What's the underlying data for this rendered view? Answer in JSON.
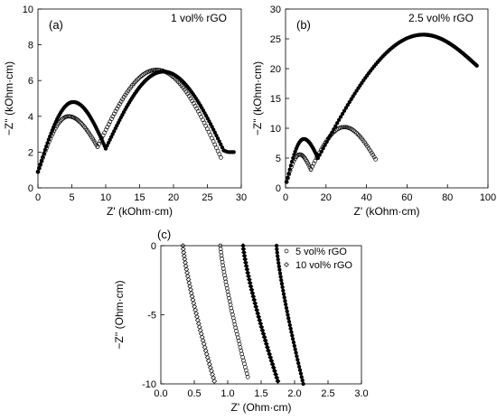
{
  "chart_data": [
    {
      "panel": "(a)",
      "type": "scatter",
      "annotation": "1 vol% rGO",
      "xlabel": "Z' (kOhm·cm)",
      "ylabel": "−Z'' (kOhm·cm)",
      "xlim": [
        0,
        30
      ],
      "ylim": [
        0,
        10
      ],
      "xticks": [
        0,
        5,
        10,
        15,
        20,
        25,
        30
      ],
      "yticks": [
        0,
        2,
        4,
        6,
        8,
        10
      ],
      "series": [
        {
          "marker": "filled-circle",
          "arcs": [
            {
              "start": [
                0.0,
                0.9
              ],
              "peak": [
                5.2,
                4.8
              ],
              "end": [
                10.0,
                2.2
              ]
            },
            {
              "start": [
                10.0,
                2.2
              ],
              "peak": [
                18.5,
                6.5
              ],
              "end": [
                27.4,
                2.1
              ]
            },
            {
              "start": [
                27.4,
                2.1
              ],
              "peak": [
                28.2,
                2.0
              ],
              "end": [
                28.9,
                2.0
              ]
            }
          ]
        },
        {
          "marker": "open-circle",
          "arcs": [
            {
              "start": [
                0.0,
                0.9
              ],
              "peak": [
                4.5,
                4.0
              ],
              "end": [
                8.8,
                2.3
              ]
            },
            {
              "start": [
                8.8,
                2.3
              ],
              "peak": [
                17.5,
                6.6
              ],
              "end": [
                27.0,
                1.7
              ]
            }
          ]
        }
      ]
    },
    {
      "panel": "(b)",
      "type": "scatter",
      "annotation": "2.5 vol% rGO",
      "xlabel": "Z' (kOhm·cm)",
      "ylabel": "−Z'' (kOhm·cm)",
      "xlim": [
        0,
        100
      ],
      "ylim": [
        0,
        30
      ],
      "xticks": [
        0,
        20,
        40,
        60,
        80,
        100
      ],
      "yticks": [
        0,
        5,
        10,
        15,
        20,
        25,
        30
      ],
      "series": [
        {
          "marker": "filled-circle",
          "arcs": [
            {
              "start": [
                0.5,
                1.0
              ],
              "peak": [
                9.0,
                8.2
              ],
              "end": [
                16.0,
                5.0
              ]
            },
            {
              "start": [
                16.0,
                5.0
              ],
              "peak": [
                68.0,
                25.7
              ],
              "end": [
                94.5,
                20.5
              ]
            }
          ]
        },
        {
          "marker": "open-circle",
          "arcs": [
            {
              "start": [
                0.5,
                1.0
              ],
              "peak": [
                7.0,
                5.6
              ],
              "end": [
                12.5,
                3.1
              ]
            },
            {
              "start": [
                12.5,
                3.1
              ],
              "peak": [
                29.0,
                10.2
              ],
              "end": [
                44.5,
                4.8
              ]
            }
          ]
        }
      ]
    },
    {
      "panel": "(c)",
      "type": "scatter",
      "xlabel": "Z' (Ohm·cm)",
      "ylabel": "−Z'' (Ohm·cm)",
      "xlim": [
        0.0,
        3.0
      ],
      "ylim": [
        -10,
        0
      ],
      "xticks": [
        "0.0",
        "0.5",
        "1.0",
        "1.5",
        "2.0",
        "2.5",
        "3.0"
      ],
      "yticks": [
        "0",
        "-5",
        "-10"
      ],
      "legend": {
        "position": "top-right",
        "entries": [
          {
            "label": "5 vol% rGO",
            "marker": "open-circle"
          },
          {
            "label": "10 vol% rGO",
            "marker": "open-diamond"
          }
        ]
      },
      "series": [
        {
          "label": "10 vol% rGO",
          "marker": "open-diamond",
          "x0": 0.33,
          "x1": 0.8,
          "y1": -9.8
        },
        {
          "label": "5 vol% rGO",
          "marker": "open-circle",
          "x0": 0.89,
          "x1": 1.3,
          "y1": -9.5
        },
        {
          "marker": "filled-diamond",
          "x0": 1.23,
          "x1": 1.75,
          "y1": -9.8
        },
        {
          "marker": "filled-circle",
          "x0": 1.73,
          "x1": 2.13,
          "y1": -10.0
        }
      ]
    }
  ]
}
